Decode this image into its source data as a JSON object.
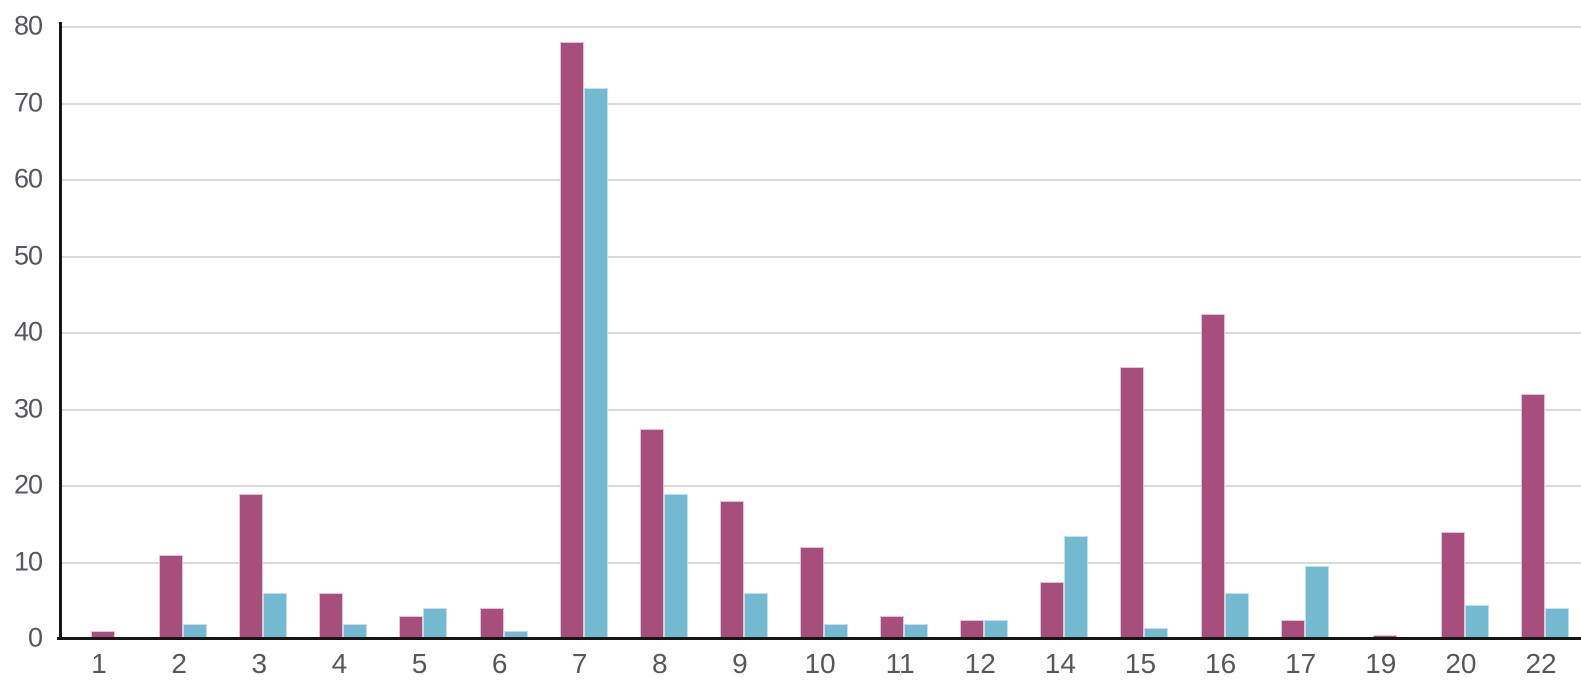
{
  "chart_data": {
    "type": "bar",
    "title": "",
    "xlabel": "",
    "ylabel": "",
    "categories": [
      "1",
      "2",
      "3",
      "4",
      "5",
      "6",
      "7",
      "8",
      "9",
      "10",
      "11",
      "12",
      "14",
      "15",
      "16",
      "17",
      "19",
      "20",
      "22"
    ],
    "series": [
      {
        "name": "magenta",
        "fill": "#a84e7c",
        "stroke": "#e3c3d6",
        "values": [
          1,
          11,
          19,
          6,
          3,
          4,
          78,
          27.5,
          18,
          12,
          3,
          2.5,
          7.5,
          35.5,
          42.5,
          2.5,
          0.5,
          14,
          32
        ]
      },
      {
        "name": "blue",
        "fill": "#73bad1",
        "stroke": "#c0e1ec",
        "values": [
          0,
          2,
          6,
          2,
          4,
          1,
          72,
          19,
          6,
          2,
          2,
          2.5,
          13.5,
          1.5,
          6,
          9.5,
          0,
          4.5,
          4
        ]
      }
    ],
    "ylim": [
      0,
      80
    ],
    "yticks": [
      0,
      10,
      20,
      30,
      40,
      50,
      60,
      70,
      80
    ],
    "grid": true,
    "legend": false,
    "background_color": "#ffffff",
    "gridline_color": "#dadada",
    "axis_color": "#161616",
    "tick_label_color": "#55565e"
  }
}
